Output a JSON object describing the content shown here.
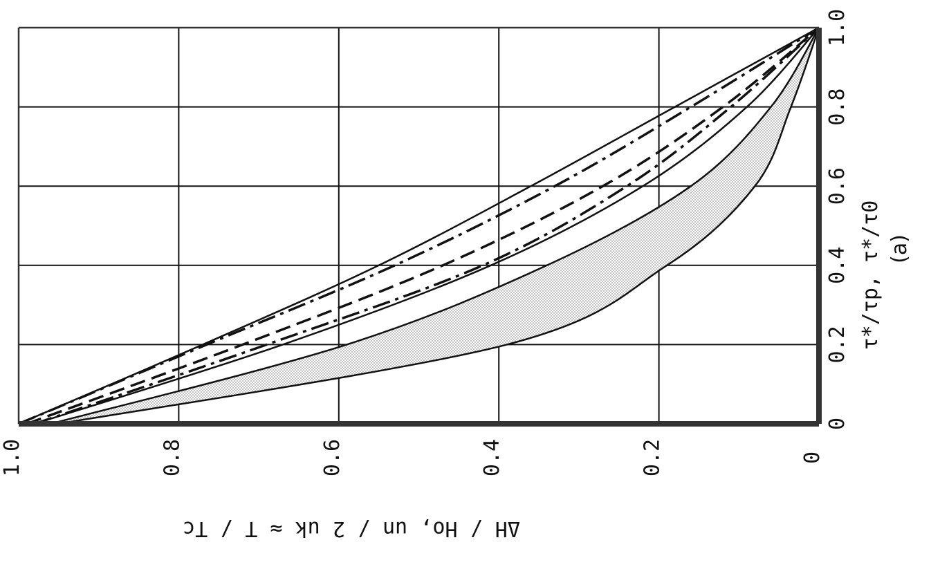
{
  "chart_data": {
    "type": "line",
    "panel_label": "(a)",
    "xlabel": "τ*/τp, τ*/τ0",
    "ylabel": "ΔH / Ho, un / 2 uk ≈ T / Tc",
    "xlim": [
      0,
      1.0
    ],
    "ylim": [
      0,
      1.0
    ],
    "x_ticks": [
      "0",
      "0.2",
      "0.4",
      "0.6",
      "0.8",
      "1.0"
    ],
    "y_ticks": [
      "0",
      "0.2",
      "0.4",
      "0.6",
      "0.8",
      "1.0"
    ],
    "grid": true,
    "orientation": "rotated 90° (x axis runs along the right edge, y axis along the bottom, both reversed)",
    "shaded_band": "dotted gray fill between the lowest two solid curves",
    "colors": {
      "line": "#111111",
      "grid": "#111111",
      "shade": "#b8b8b8",
      "frame": "#333333"
    },
    "series": [
      {
        "style": "solid",
        "points": [
          [
            0,
            1.0
          ],
          [
            0.2,
            0.77
          ],
          [
            0.4,
            0.55
          ],
          [
            0.6,
            0.36
          ],
          [
            0.8,
            0.18
          ],
          [
            1.0,
            0.0
          ]
        ]
      },
      {
        "style": "dash-dot",
        "points": [
          [
            0,
            1.0
          ],
          [
            0.2,
            0.765
          ],
          [
            0.4,
            0.53
          ],
          [
            0.6,
            0.33
          ],
          [
            0.8,
            0.16
          ],
          [
            1.0,
            0.0
          ]
        ]
      },
      {
        "style": "dashed",
        "points": [
          [
            0,
            0.99
          ],
          [
            0.2,
            0.72
          ],
          [
            0.4,
            0.47
          ],
          [
            0.6,
            0.27
          ],
          [
            0.8,
            0.12
          ],
          [
            1.0,
            0.0
          ]
        ]
      },
      {
        "style": "dash-dot",
        "points": [
          [
            0,
            0.98
          ],
          [
            0.2,
            0.69
          ],
          [
            0.4,
            0.42
          ],
          [
            0.6,
            0.24
          ],
          [
            0.8,
            0.11
          ],
          [
            1.0,
            0.0
          ]
        ]
      },
      {
        "style": "solid",
        "points": [
          [
            0,
            0.98
          ],
          [
            0.2,
            0.67
          ],
          [
            0.4,
            0.41
          ],
          [
            0.6,
            0.22
          ],
          [
            0.8,
            0.09
          ],
          [
            1.0,
            0.0
          ]
        ]
      },
      {
        "style": "solid",
        "points": [
          [
            0,
            0.96
          ],
          [
            0.2,
            0.59
          ],
          [
            0.4,
            0.34
          ],
          [
            0.6,
            0.16
          ],
          [
            0.8,
            0.06
          ],
          [
            1.0,
            0.0
          ]
        ]
      },
      {
        "style": "solid",
        "points": [
          [
            0,
            0.95
          ],
          [
            0.2,
            0.39
          ],
          [
            0.4,
            0.19
          ],
          [
            0.6,
            0.08
          ],
          [
            0.8,
            0.035
          ],
          [
            1.0,
            0.0
          ]
        ]
      }
    ]
  }
}
